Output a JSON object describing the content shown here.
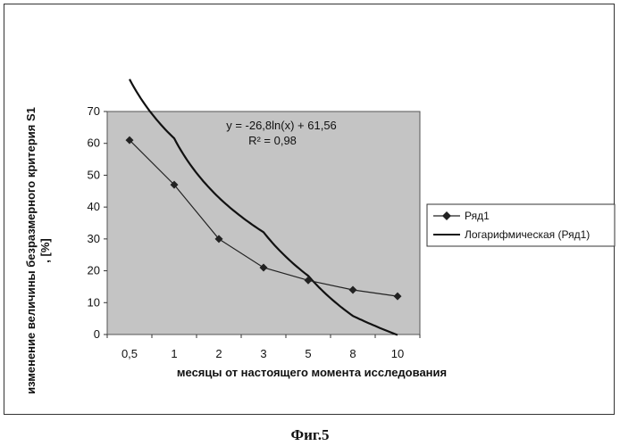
{
  "chart_data": {
    "type": "line",
    "categories": [
      "0,5",
      "1",
      "2",
      "3",
      "5",
      "8",
      "10"
    ],
    "x": [
      0.5,
      1,
      2,
      3,
      5,
      8,
      10
    ],
    "xlabel": "месяцы от настоящего  момента исследования",
    "ylabel_line1": "изменение величины безразмерного критерия S1",
    "ylabel_line2": ", [%]",
    "ylim": [
      0,
      70
    ],
    "yticks": [
      0,
      10,
      20,
      30,
      40,
      50,
      60,
      70
    ],
    "grid": false,
    "plot_background": "#c4c4c4",
    "series": [
      {
        "name": "Ряд1",
        "values": [
          61,
          47,
          30,
          21,
          17,
          14,
          12
        ],
        "color": "#222222",
        "marker": "diamond"
      }
    ],
    "trendline": {
      "name": "Логарифмическая (Ряд1)",
      "type": "logarithmic",
      "a": -26.8,
      "b": 61.56,
      "color": "#111111"
    },
    "annotation": {
      "equation": "y = -26,8ln(x) + 61,56",
      "r2": "R² = 0,98"
    },
    "legend_position": "right"
  },
  "caption": "Фиг.5"
}
